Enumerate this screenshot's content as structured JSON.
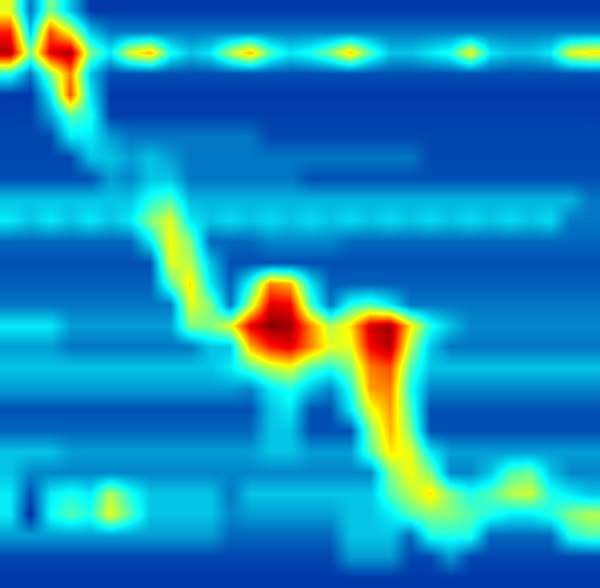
{
  "chart_data": {
    "type": "heatmap",
    "xlim": [
      -0.5,
      29.5
    ],
    "ylim": [
      27.5,
      -0.5
    ],
    "color_range": [
      0,
      1
    ],
    "tick_labels": false,
    "cells": [
      [
        0.6,
        0.2,
        0.5,
        0.3,
        0.12,
        0.12,
        0.12,
        0.12,
        0.12,
        0.12,
        0.12,
        0.12,
        0.12,
        0.12,
        0.12,
        0.12,
        0.12,
        0.12,
        0.12,
        0.12,
        0.12,
        0.12,
        0.12,
        0.12,
        0.12,
        0.12,
        0.12,
        0.12,
        0.12,
        0.12
      ],
      [
        0.85,
        0.3,
        0.8,
        0.6,
        0.3,
        0.2,
        0.2,
        0.2,
        0.2,
        0.2,
        0.2,
        0.2,
        0.2,
        0.2,
        0.2,
        0.2,
        0.2,
        0.2,
        0.2,
        0.2,
        0.2,
        0.2,
        0.2,
        0.2,
        0.2,
        0.2,
        0.2,
        0.2,
        0.2,
        0.2
      ],
      [
        0.95,
        0.5,
        0.9,
        0.97,
        0.5,
        0.35,
        0.6,
        0.7,
        0.4,
        0.3,
        0.35,
        0.55,
        0.7,
        0.45,
        0.35,
        0.4,
        0.5,
        0.68,
        0.45,
        0.3,
        0.3,
        0.35,
        0.4,
        0.62,
        0.35,
        0.3,
        0.3,
        0.35,
        0.6,
        0.65
      ],
      [
        0.4,
        0.2,
        0.5,
        0.75,
        0.3,
        0.15,
        0.15,
        0.15,
        0.15,
        0.15,
        0.15,
        0.15,
        0.15,
        0.15,
        0.15,
        0.15,
        0.15,
        0.15,
        0.15,
        0.15,
        0.15,
        0.15,
        0.15,
        0.15,
        0.15,
        0.15,
        0.15,
        0.15,
        0.15,
        0.15
      ],
      [
        0.12,
        0.12,
        0.35,
        0.8,
        0.35,
        0.12,
        0.12,
        0.12,
        0.12,
        0.12,
        0.12,
        0.12,
        0.12,
        0.12,
        0.12,
        0.12,
        0.12,
        0.12,
        0.12,
        0.12,
        0.12,
        0.12,
        0.12,
        0.12,
        0.12,
        0.12,
        0.12,
        0.12,
        0.12,
        0.12
      ],
      [
        0.13,
        0.13,
        0.25,
        0.45,
        0.4,
        0.13,
        0.13,
        0.13,
        0.13,
        0.13,
        0.13,
        0.13,
        0.13,
        0.13,
        0.13,
        0.13,
        0.13,
        0.13,
        0.13,
        0.13,
        0.13,
        0.13,
        0.13,
        0.13,
        0.13,
        0.13,
        0.13,
        0.13,
        0.13,
        0.13
      ],
      [
        0.14,
        0.14,
        0.14,
        0.35,
        0.35,
        0.25,
        0.2,
        0.2,
        0.2,
        0.2,
        0.2,
        0.2,
        0.2,
        0.14,
        0.14,
        0.14,
        0.14,
        0.14,
        0.14,
        0.14,
        0.14,
        0.14,
        0.14,
        0.14,
        0.14,
        0.14,
        0.14,
        0.14,
        0.14,
        0.14
      ],
      [
        0.14,
        0.14,
        0.14,
        0.14,
        0.3,
        0.3,
        0.25,
        0.3,
        0.25,
        0.2,
        0.2,
        0.2,
        0.2,
        0.2,
        0.2,
        0.2,
        0.2,
        0.2,
        0.2,
        0.2,
        0.2,
        0.14,
        0.14,
        0.14,
        0.14,
        0.14,
        0.14,
        0.14,
        0.14,
        0.14
      ],
      [
        0.15,
        0.15,
        0.15,
        0.15,
        0.15,
        0.25,
        0.22,
        0.3,
        0.3,
        0.2,
        0.2,
        0.2,
        0.2,
        0.2,
        0.2,
        0.15,
        0.15,
        0.15,
        0.15,
        0.15,
        0.15,
        0.15,
        0.15,
        0.15,
        0.15,
        0.15,
        0.15,
        0.15,
        0.15,
        0.15
      ],
      [
        0.3,
        0.3,
        0.3,
        0.3,
        0.3,
        0.3,
        0.3,
        0.4,
        0.45,
        0.28,
        0.28,
        0.28,
        0.28,
        0.28,
        0.28,
        0.28,
        0.28,
        0.28,
        0.28,
        0.28,
        0.28,
        0.28,
        0.28,
        0.28,
        0.28,
        0.28,
        0.28,
        0.28,
        0.28,
        0.2
      ],
      [
        0.35,
        0.3,
        0.35,
        0.3,
        0.35,
        0.3,
        0.35,
        0.5,
        0.6,
        0.35,
        0.3,
        0.33,
        0.3,
        0.33,
        0.3,
        0.33,
        0.3,
        0.33,
        0.3,
        0.33,
        0.3,
        0.33,
        0.3,
        0.33,
        0.3,
        0.33,
        0.3,
        0.33,
        0.2,
        0.2
      ],
      [
        0.18,
        0.18,
        0.18,
        0.18,
        0.18,
        0.18,
        0.18,
        0.35,
        0.62,
        0.5,
        0.18,
        0.18,
        0.18,
        0.22,
        0.22,
        0.22,
        0.22,
        0.18,
        0.18,
        0.18,
        0.18,
        0.18,
        0.18,
        0.18,
        0.18,
        0.18,
        0.18,
        0.18,
        0.18,
        0.18
      ],
      [
        0.15,
        0.15,
        0.15,
        0.15,
        0.15,
        0.15,
        0.15,
        0.15,
        0.6,
        0.55,
        0.3,
        0.15,
        0.15,
        0.15,
        0.15,
        0.15,
        0.15,
        0.15,
        0.15,
        0.15,
        0.15,
        0.15,
        0.15,
        0.15,
        0.15,
        0.15,
        0.15,
        0.15,
        0.15,
        0.15
      ],
      [
        0.17,
        0.17,
        0.17,
        0.17,
        0.17,
        0.17,
        0.17,
        0.17,
        0.45,
        0.65,
        0.35,
        0.17,
        0.4,
        0.75,
        0.7,
        0.35,
        0.17,
        0.17,
        0.17,
        0.17,
        0.17,
        0.17,
        0.17,
        0.17,
        0.17,
        0.17,
        0.17,
        0.17,
        0.17,
        0.17
      ],
      [
        0.2,
        0.2,
        0.2,
        0.2,
        0.2,
        0.2,
        0.2,
        0.2,
        0.2,
        0.6,
        0.5,
        0.2,
        0.55,
        0.9,
        0.88,
        0.45,
        0.2,
        0.4,
        0.45,
        0.35,
        0.2,
        0.2,
        0.2,
        0.2,
        0.2,
        0.2,
        0.2,
        0.2,
        0.2,
        0.2
      ],
      [
        0.35,
        0.35,
        0.35,
        0.25,
        0.25,
        0.25,
        0.25,
        0.25,
        0.25,
        0.5,
        0.5,
        0.6,
        0.9,
        0.99,
        0.97,
        0.75,
        0.55,
        0.65,
        0.92,
        0.97,
        0.65,
        0.4,
        0.3,
        0.22,
        0.22,
        0.22,
        0.22,
        0.22,
        0.22,
        0.22
      ],
      [
        0.25,
        0.25,
        0.25,
        0.2,
        0.2,
        0.2,
        0.2,
        0.2,
        0.2,
        0.2,
        0.3,
        0.3,
        0.7,
        0.85,
        0.9,
        0.75,
        0.6,
        0.6,
        0.88,
        0.95,
        0.55,
        0.3,
        0.2,
        0.2,
        0.2,
        0.2,
        0.2,
        0.2,
        0.2,
        0.2
      ],
      [
        0.3,
        0.3,
        0.3,
        0.3,
        0.3,
        0.3,
        0.3,
        0.3,
        0.3,
        0.3,
        0.3,
        0.35,
        0.45,
        0.55,
        0.6,
        0.45,
        0.4,
        0.5,
        0.75,
        0.8,
        0.45,
        0.3,
        0.3,
        0.3,
        0.3,
        0.3,
        0.3,
        0.3,
        0.3,
        0.3
      ],
      [
        0.25,
        0.25,
        0.25,
        0.25,
        0.25,
        0.25,
        0.25,
        0.25,
        0.25,
        0.25,
        0.25,
        0.25,
        0.22,
        0.35,
        0.4,
        0.3,
        0.22,
        0.4,
        0.72,
        0.75,
        0.4,
        0.22,
        0.22,
        0.22,
        0.22,
        0.22,
        0.22,
        0.22,
        0.22,
        0.22
      ],
      [
        0.15,
        0.15,
        0.15,
        0.15,
        0.15,
        0.15,
        0.15,
        0.15,
        0.15,
        0.15,
        0.15,
        0.15,
        0.15,
        0.3,
        0.35,
        0.15,
        0.15,
        0.35,
        0.6,
        0.72,
        0.45,
        0.15,
        0.15,
        0.15,
        0.15,
        0.15,
        0.15,
        0.15,
        0.15,
        0.15
      ],
      [
        0.18,
        0.18,
        0.18,
        0.18,
        0.18,
        0.18,
        0.18,
        0.18,
        0.18,
        0.18,
        0.18,
        0.18,
        0.18,
        0.3,
        0.3,
        0.15,
        0.15,
        0.15,
        0.5,
        0.7,
        0.5,
        0.15,
        0.15,
        0.15,
        0.15,
        0.15,
        0.15,
        0.15,
        0.15,
        0.15
      ],
      [
        0.3,
        0.3,
        0.3,
        0.25,
        0.25,
        0.25,
        0.25,
        0.25,
        0.25,
        0.25,
        0.25,
        0.25,
        0.25,
        0.3,
        0.3,
        0.25,
        0.25,
        0.25,
        0.45,
        0.65,
        0.6,
        0.35,
        0.25,
        0.25,
        0.25,
        0.25,
        0.25,
        0.25,
        0.25,
        0.25
      ],
      [
        0.3,
        0.22,
        0.22,
        0.22,
        0.22,
        0.22,
        0.22,
        0.22,
        0.22,
        0.22,
        0.22,
        0.22,
        0.22,
        0.22,
        0.22,
        0.22,
        0.22,
        0.22,
        0.22,
        0.5,
        0.62,
        0.5,
        0.22,
        0.22,
        0.3,
        0.45,
        0.48,
        0.3,
        0.22,
        0.22
      ],
      [
        0.35,
        0.15,
        0.35,
        0.4,
        0.35,
        0.55,
        0.4,
        0.3,
        0.3,
        0.3,
        0.3,
        0.2,
        0.3,
        0.3,
        0.3,
        0.3,
        0.3,
        0.3,
        0.3,
        0.45,
        0.55,
        0.65,
        0.5,
        0.4,
        0.45,
        0.55,
        0.58,
        0.4,
        0.35,
        0.3
      ],
      [
        0.35,
        0.1,
        0.38,
        0.45,
        0.4,
        0.6,
        0.45,
        0.3,
        0.3,
        0.3,
        0.3,
        0.22,
        0.25,
        0.25,
        0.25,
        0.25,
        0.25,
        0.3,
        0.3,
        0.35,
        0.45,
        0.5,
        0.5,
        0.45,
        0.4,
        0.35,
        0.35,
        0.4,
        0.5,
        0.55
      ],
      [
        0.25,
        0.25,
        0.25,
        0.25,
        0.25,
        0.25,
        0.25,
        0.25,
        0.25,
        0.25,
        0.25,
        0.18,
        0.18,
        0.18,
        0.18,
        0.18,
        0.18,
        0.3,
        0.3,
        0.3,
        0.18,
        0.4,
        0.4,
        0.4,
        0.18,
        0.18,
        0.18,
        0.18,
        0.4,
        0.45
      ],
      [
        0.14,
        0.14,
        0.14,
        0.14,
        0.14,
        0.14,
        0.14,
        0.14,
        0.14,
        0.14,
        0.14,
        0.14,
        0.14,
        0.14,
        0.14,
        0.14,
        0.14,
        0.25,
        0.25,
        0.25,
        0.14,
        0.14,
        0.25,
        0.14,
        0.14,
        0.14,
        0.14,
        0.14,
        0.14,
        0.14
      ],
      [
        0.12,
        0.12,
        0.12,
        0.12,
        0.12,
        0.12,
        0.12,
        0.12,
        0.12,
        0.12,
        0.12,
        0.12,
        0.12,
        0.12,
        0.12,
        0.12,
        0.12,
        0.12,
        0.12,
        0.12,
        0.12,
        0.12,
        0.12,
        0.12,
        0.12,
        0.12,
        0.12,
        0.12,
        0.12,
        0.12
      ]
    ]
  }
}
